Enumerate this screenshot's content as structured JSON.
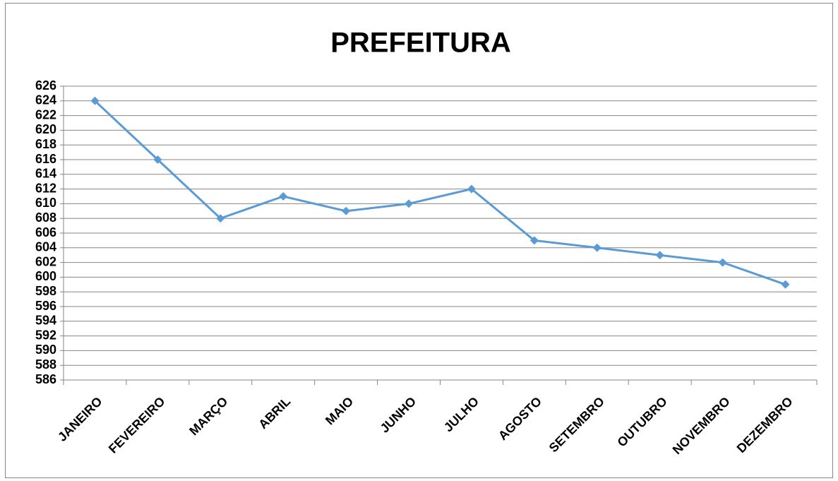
{
  "chart_data": {
    "type": "line",
    "title": "PREFEITURA",
    "categories": [
      "JANEIRO",
      "FEVEREIRO",
      "MARÇO",
      "ABRIL",
      "MAIO",
      "JUNHO",
      "JULHO",
      "AGOSTO",
      "SETEMBRO",
      "OUTUBRO",
      "NOVEMBRO",
      "DEZEMBRO"
    ],
    "series": [
      {
        "name": "PREFEITURA",
        "color": "#5b9bd5",
        "values": [
          624,
          616,
          608,
          611,
          609,
          610,
          612,
          605,
          604,
          603,
          602,
          599
        ]
      }
    ],
    "ylim": [
      586,
      626
    ],
    "yticks": [
      586,
      588,
      590,
      592,
      594,
      596,
      598,
      600,
      602,
      604,
      606,
      608,
      610,
      612,
      614,
      616,
      618,
      620,
      622,
      624,
      626
    ],
    "grid": true
  }
}
